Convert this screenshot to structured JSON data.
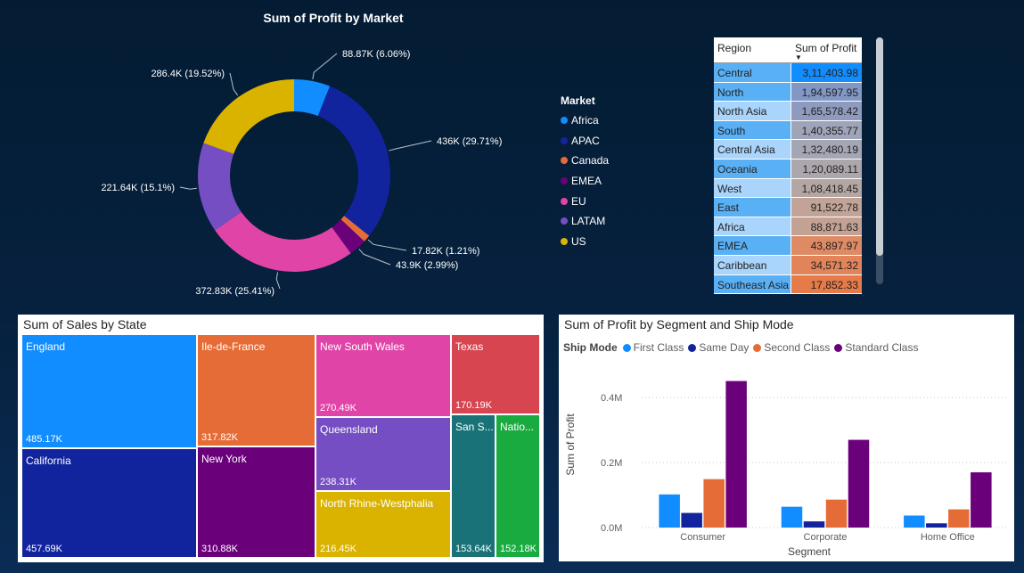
{
  "chart_data": [
    {
      "type": "pie",
      "title": "Sum of Profit by Market",
      "legend_title": "Market",
      "legend_position": "right",
      "slices": [
        {
          "name": "Africa",
          "value": 88.87,
          "label": "88.87K (6.06%)",
          "color": "#118DFF"
        },
        {
          "name": "APAC",
          "value": 436,
          "label": "436K (29.71%)",
          "color": "#12239E"
        },
        {
          "name": "Canada",
          "value": 17.82,
          "label": "17.82K (1.21%)",
          "color": "#E66C37"
        },
        {
          "name": "EMEA",
          "value": 43.9,
          "label": "43.9K (2.99%)",
          "color": "#6B007B"
        },
        {
          "name": "EU",
          "value": 372.83,
          "label": "372.83K (25.41%)",
          "color": "#E044A7"
        },
        {
          "name": "LATAM",
          "value": 221.64,
          "label": "221.64K (15.1%)",
          "color": "#744EC2"
        },
        {
          "name": "US",
          "value": 286.4,
          "label": "286.4K (19.52%)",
          "color": "#D9B300"
        }
      ]
    },
    {
      "type": "table",
      "columns": [
        "Region",
        "Sum of Profit"
      ],
      "rows": [
        {
          "region": "Central",
          "profit": "3,11,403.98",
          "c1": "#5AB0F5",
          "c2": "#118DFF"
        },
        {
          "region": "North",
          "profit": "1,94,597.95",
          "c1": "#5AB0F5",
          "c2": "#8198C4"
        },
        {
          "region": "North Asia",
          "profit": "1,65,578.42",
          "c1": "#A9D4FB",
          "c2": "#8F9BBE"
        },
        {
          "region": "South",
          "profit": "1,40,355.77",
          "c1": "#5AB0F5",
          "c2": "#9EA5B8"
        },
        {
          "region": "Central Asia",
          "profit": "1,32,480.19",
          "c1": "#A9D4FB",
          "c2": "#A4A6B3"
        },
        {
          "region": "Oceania",
          "profit": "1,20,089.11",
          "c1": "#5AB0F5",
          "c2": "#ACA7AC"
        },
        {
          "region": "West",
          "profit": "1,08,418.45",
          "c1": "#A9D4FB",
          "c2": "#B4A6A2"
        },
        {
          "region": "East",
          "profit": "91,522.78",
          "c1": "#5AB0F5",
          "c2": "#C1A397"
        },
        {
          "region": "Africa",
          "profit": "88,871.63",
          "c1": "#A9D4FB",
          "c2": "#C3A294"
        },
        {
          "region": "EMEA",
          "profit": "43,897.97",
          "c1": "#5AB0F5",
          "c2": "#DE8A64"
        },
        {
          "region": "Caribbean",
          "profit": "34,571.32",
          "c1": "#A9D4FB",
          "c2": "#E2845A"
        },
        {
          "region": "Southeast Asia",
          "profit": "17,852.33",
          "c1": "#5AB0F5",
          "c2": "#E67A48"
        }
      ]
    },
    {
      "type": "treemap",
      "title": "Sum of Sales by State",
      "items": [
        {
          "name": "England",
          "value": "485.17K",
          "color": "#118DFF"
        },
        {
          "name": "California",
          "value": "457.69K",
          "color": "#12239E"
        },
        {
          "name": "Ile-de-France",
          "value": "317.82K",
          "color": "#E66C37"
        },
        {
          "name": "New York",
          "value": "310.88K",
          "color": "#6B007B"
        },
        {
          "name": "New South Wales",
          "value": "270.49K",
          "color": "#E044A7"
        },
        {
          "name": "Queensland",
          "value": "238.31K",
          "color": "#744EC2"
        },
        {
          "name": "North Rhine-Westphalia",
          "value": "216.45K",
          "color": "#D9B300"
        },
        {
          "name": "Texas",
          "value": "170.19K",
          "color": "#D64550"
        },
        {
          "name": "San S...",
          "value": "153.64K",
          "color": "#197278"
        },
        {
          "name": "Natio...",
          "value": "152.18K",
          "color": "#1AAB40"
        }
      ]
    },
    {
      "type": "bar",
      "title": "Sum of Profit by Segment and Ship Mode",
      "legend_title": "Ship Mode",
      "legend_position": "top-left",
      "xlabel": "Segment",
      "ylabel": "Sum of Profit",
      "categories": [
        "Consumer",
        "Corporate",
        "Home Office"
      ],
      "ylim": [
        0,
        0.48
      ],
      "yticks": [
        {
          "v": 0,
          "label": "0.0M"
        },
        {
          "v": 0.2,
          "label": "0.2M"
        },
        {
          "v": 0.4,
          "label": "0.4M"
        }
      ],
      "grid": true,
      "series": [
        {
          "name": "First Class",
          "color": "#118DFF",
          "values": [
            0.102,
            0.064,
            0.037
          ]
        },
        {
          "name": "Same Day",
          "color": "#12239E",
          "values": [
            0.045,
            0.019,
            0.013
          ]
        },
        {
          "name": "Second Class",
          "color": "#E66C37",
          "values": [
            0.149,
            0.086,
            0.056
          ]
        },
        {
          "name": "Standard Class",
          "color": "#6B007B",
          "values": [
            0.451,
            0.27,
            0.17
          ]
        }
      ]
    }
  ]
}
